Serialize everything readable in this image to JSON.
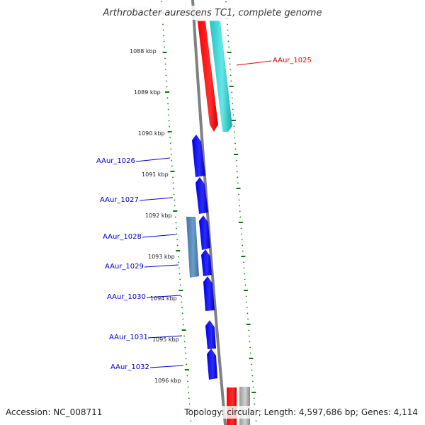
{
  "title": "Arthrobacter aurescens TC1, complete genome",
  "footer": {
    "accession": "Accession: NC_008711",
    "topology": "Topology: circular; Length: 4,597,686 bp; Genes: 4,114"
  },
  "scale_labels": [
    "1088 kbp",
    "1089 kbp",
    "1090 kbp",
    "1091 kbp",
    "1092 kbp",
    "1093 kbp",
    "1094 kbp",
    "1095 kbp",
    "1096 kbp"
  ],
  "gene_labels": [
    "AAur_1025",
    "AAur_1026",
    "AAur_1027",
    "AAur_1028",
    "AAur_1029",
    "AAur_1030",
    "AAur_1031",
    "AAur_1032"
  ],
  "colors": {
    "backbone": "#808080",
    "scale_ticks": "#008000",
    "forward_gene": "#0000ff",
    "forward_gene_light": "#4a7fb5",
    "reverse_gene": "#ff0000",
    "highlight_gene": "#33cccc",
    "label_red": "#dd0000",
    "label_blue": "#0000cc"
  }
}
